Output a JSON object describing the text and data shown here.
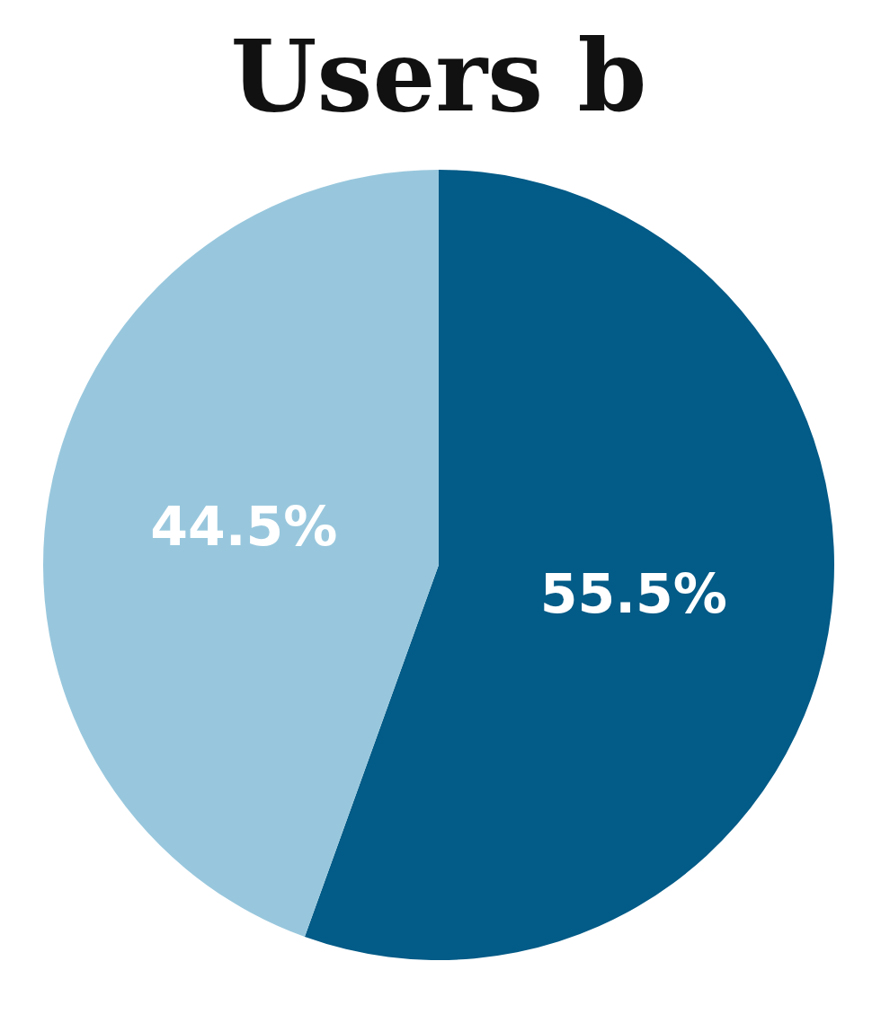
{
  "chart_data": {
    "type": "pie",
    "title": "Users b",
    "categories": [
      null,
      null
    ],
    "values": [
      55.5,
      44.5
    ],
    "colors": [
      "#035b87",
      "#98c7dd"
    ],
    "value_labels": [
      "55.5%",
      "44.5%"
    ],
    "legend": false
  }
}
